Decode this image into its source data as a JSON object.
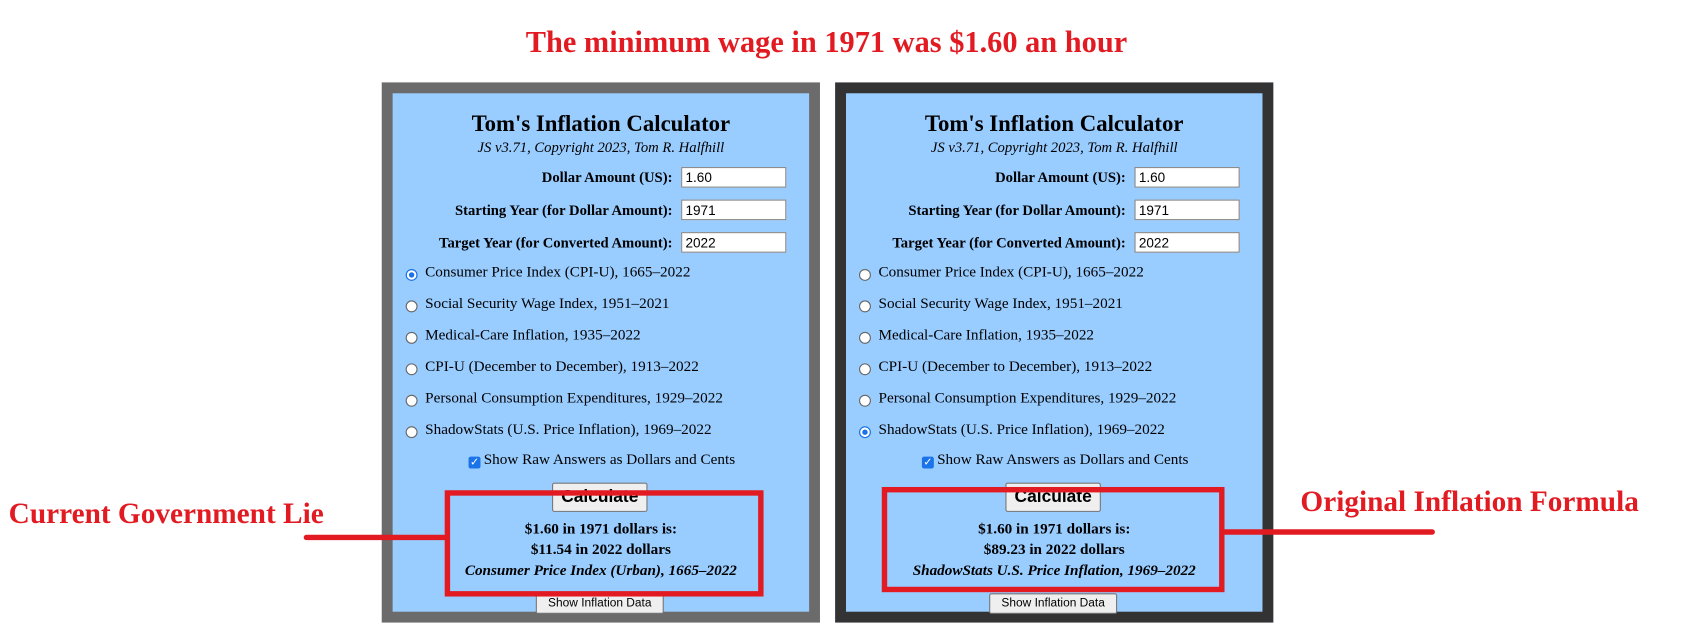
{
  "title": "The minimum wage in 1971 was $1.60 an hour",
  "panels": [
    {
      "heading": "Tom's Inflation Calculator",
      "subtitle": "JS v3.71, Copyright 2023, Tom R. Halfhill",
      "fields": [
        {
          "label": "Dollar Amount (US):",
          "value": "1.60"
        },
        {
          "label": "Starting Year (for Dollar Amount):",
          "value": "1971"
        },
        {
          "label": "Target Year (for Converted Amount):",
          "value": "2022"
        }
      ],
      "options": [
        "Consumer Price Index (CPI-U), 1665–2022",
        "Social Security Wage Index, 1951–2021",
        "Medical-Care Inflation, 1935–2022",
        "CPI-U (December to December), 1913–2022",
        "Personal Consumption Expenditures, 1929–2022",
        "ShadowStats (U.S. Price Inflation), 1969–2022"
      ],
      "selected_option": 0,
      "checkbox_label": "Show Raw Answers as Dollars and Cents",
      "checkbox_checked": true,
      "calculate_button": "Calculate",
      "result": [
        "$1.60 in 1971 dollars is:",
        "$11.54 in 2022 dollars",
        "Consumer Price Index (Urban), 1665–2022"
      ],
      "data_button": "Show Inflation Data"
    },
    {
      "heading": "Tom's Inflation Calculator",
      "subtitle": "JS v3.71, Copyright 2023, Tom R. Halfhill",
      "fields": [
        {
          "label": "Dollar Amount (US):",
          "value": "1.60"
        },
        {
          "label": "Starting Year (for Dollar Amount):",
          "value": "1971"
        },
        {
          "label": "Target Year (for Converted Amount):",
          "value": "2022"
        }
      ],
      "options": [
        "Consumer Price Index (CPI-U), 1665–2022",
        "Social Security Wage Index, 1951–2021",
        "Medical-Care Inflation, 1935–2022",
        "CPI-U (December to December), 1913–2022",
        "Personal Consumption Expenditures, 1929–2022",
        "ShadowStats (U.S. Price Inflation), 1969–2022"
      ],
      "selected_option": 5,
      "checkbox_label": "Show Raw Answers as Dollars and Cents",
      "checkbox_checked": true,
      "calculate_button": "Calculate",
      "result": [
        "$1.60 in 1971 dollars is:",
        "$89.23 in 2022 dollars",
        "ShadowStats U.S. Price Inflation, 1969–2022"
      ],
      "data_button": "Show Inflation Data"
    }
  ],
  "annotations": [
    {
      "text": "Current Government Lie"
    },
    {
      "text": "Original Inflation Formula"
    }
  ]
}
